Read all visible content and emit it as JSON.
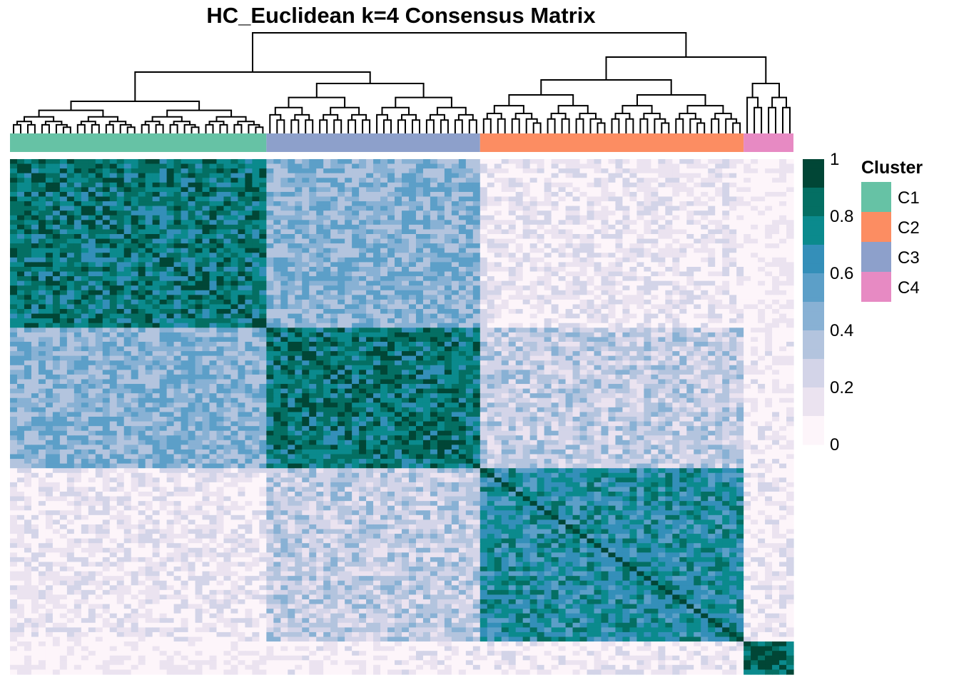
{
  "chart_data": {
    "type": "heatmap",
    "title": "HC_Euclidean k=4 Consensus Matrix",
    "n_samples": 110,
    "clusters_in_order": [
      {
        "id": "C1",
        "size": 36
      },
      {
        "id": "C3",
        "size": 30
      },
      {
        "id": "C2",
        "size": 37
      },
      {
        "id": "C4",
        "size": 7
      }
    ],
    "block_mean_consensus": {
      "rows": [
        "C1",
        "C3",
        "C2",
        "C4"
      ],
      "cols": [
        "C1",
        "C3",
        "C2",
        "C4"
      ],
      "values": [
        [
          0.8,
          0.45,
          0.12,
          0.05
        ],
        [
          0.45,
          0.8,
          0.3,
          0.08
        ],
        [
          0.12,
          0.3,
          0.7,
          0.1
        ],
        [
          0.05,
          0.08,
          0.1,
          0.9
        ]
      ]
    },
    "colorbar": {
      "min": 0,
      "max": 1,
      "ticks": [
        "1",
        "0.8",
        "0.6",
        "0.4",
        "0.2",
        "0"
      ],
      "colors": [
        "#fdf5fa",
        "#ebe3f0",
        "#d3d4e8",
        "#b3c4de",
        "#88b1d4",
        "#5c9fc8",
        "#348fb9",
        "#0b8a8d",
        "#046f63",
        "#014636"
      ]
    },
    "legend": {
      "title": "Cluster",
      "position": "right",
      "items": [
        {
          "label": "C1",
          "color": "#66c2a5"
        },
        {
          "label": "C2",
          "color": "#fc8d62"
        },
        {
          "label": "C3",
          "color": "#8da0cb"
        },
        {
          "label": "C4",
          "color": "#e78ac3"
        }
      ]
    }
  }
}
